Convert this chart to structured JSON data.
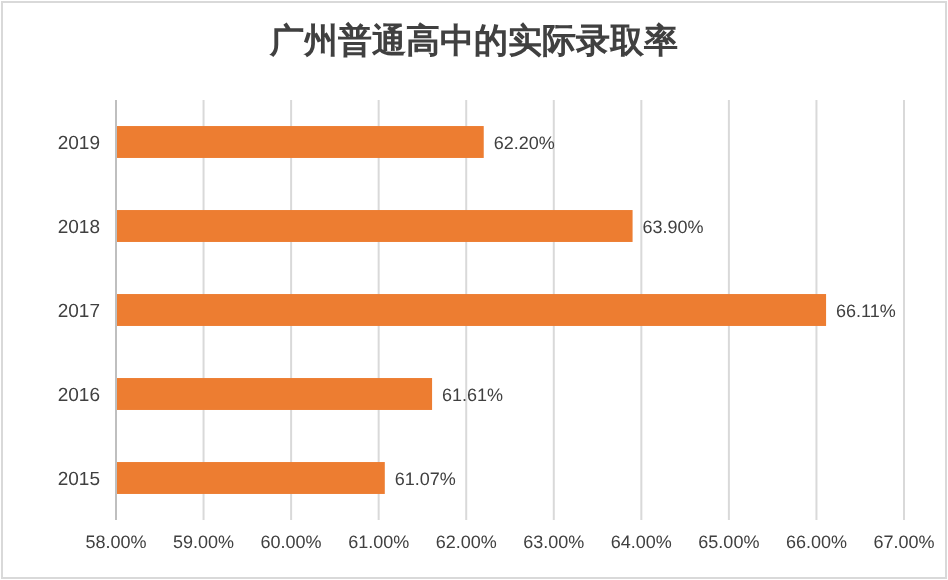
{
  "chart_data": {
    "type": "bar",
    "orientation": "horizontal",
    "title": "广州普通高中的实际录取率",
    "categories": [
      "2019",
      "2018",
      "2017",
      "2016",
      "2015"
    ],
    "values": [
      62.2,
      63.9,
      66.11,
      61.61,
      61.07
    ],
    "value_labels": [
      "62.20%",
      "63.90%",
      "66.11%",
      "61.61%",
      "61.07%"
    ],
    "color": "#ed7d31",
    "xlim": [
      58,
      67
    ],
    "xticks": [
      {
        "value": 58,
        "label": "58.00%"
      },
      {
        "value": 59,
        "label": "59.00%"
      },
      {
        "value": 60,
        "label": "60.00%"
      },
      {
        "value": 61,
        "label": "61.00%"
      },
      {
        "value": 62,
        "label": "62.00%"
      },
      {
        "value": 63,
        "label": "63.00%"
      },
      {
        "value": 64,
        "label": "64.00%"
      },
      {
        "value": 65,
        "label": "65.00%"
      },
      {
        "value": 66,
        "label": "66.00%"
      },
      {
        "value": 67,
        "label": "67.00%"
      }
    ],
    "grid": "x"
  }
}
